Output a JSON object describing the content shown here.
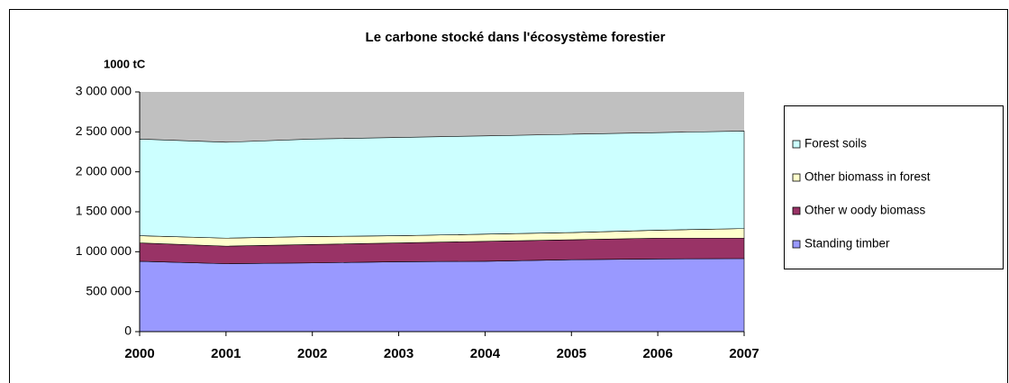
{
  "chart_data": {
    "type": "stacked_area",
    "title": "Le carbone stocké dans l'écosystème forestier",
    "y_axis_label": "1000 tC",
    "categories": [
      "2000",
      "2001",
      "2002",
      "2003",
      "2004",
      "2005",
      "2006",
      "2007"
    ],
    "series": [
      {
        "name": "Standing timber",
        "color": "#9999ff",
        "values": [
          880000,
          850000,
          860000,
          875000,
          880000,
          900000,
          910000,
          915000
        ]
      },
      {
        "name": "Other w oody biomass",
        "color": "#993366",
        "values": [
          230000,
          220000,
          230000,
          235000,
          250000,
          250000,
          260000,
          255000
        ]
      },
      {
        "name": "Other biomass in forest",
        "color": "#ffffcc",
        "values": [
          90000,
          100000,
          100000,
          90000,
          90000,
          90000,
          100000,
          120000
        ]
      },
      {
        "name": "Forest soils",
        "color": "#ccffff",
        "values": [
          1210000,
          1200000,
          1220000,
          1230000,
          1230000,
          1230000,
          1220000,
          1220000
        ]
      }
    ],
    "ylim": [
      0,
      3000000
    ],
    "yticks": [
      0,
      {
        "value": 500000,
        "label": "500 000"
      },
      {
        "value": 1000000,
        "label": "1 000 000"
      },
      {
        "value": 1500000,
        "label": "1 500 000"
      },
      {
        "value": 2000000,
        "label": "2 000 000"
      },
      {
        "value": 2500000,
        "label": "2 500 000"
      },
      {
        "value": 3000000,
        "label": "3 000 000"
      }
    ],
    "plot_background": "#c0c0c0",
    "legend": "right"
  }
}
